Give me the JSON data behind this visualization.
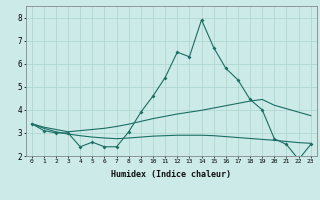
{
  "xlabel": "Humidex (Indice chaleur)",
  "x": [
    0,
    1,
    2,
    3,
    4,
    5,
    6,
    7,
    8,
    9,
    10,
    11,
    12,
    13,
    14,
    15,
    16,
    17,
    18,
    19,
    20,
    21,
    22,
    23
  ],
  "line_spiky": [
    3.4,
    3.1,
    3.0,
    3.0,
    2.4,
    2.6,
    2.4,
    2.4,
    3.05,
    3.9,
    4.6,
    5.4,
    6.5,
    6.3,
    7.9,
    6.7,
    5.8,
    5.3,
    4.45,
    4.0,
    2.75,
    2.5,
    1.85,
    2.5
  ],
  "line_upper": [
    3.4,
    3.25,
    3.15,
    3.05,
    3.1,
    3.15,
    3.2,
    3.28,
    3.38,
    3.5,
    3.62,
    3.72,
    3.82,
    3.9,
    3.98,
    4.08,
    4.18,
    4.28,
    4.38,
    4.45,
    4.2,
    4.05,
    3.9,
    3.75
  ],
  "line_lower": [
    3.4,
    3.2,
    3.05,
    2.95,
    2.88,
    2.82,
    2.78,
    2.75,
    2.78,
    2.82,
    2.86,
    2.88,
    2.9,
    2.9,
    2.9,
    2.88,
    2.84,
    2.8,
    2.76,
    2.72,
    2.68,
    2.63,
    2.58,
    2.55
  ],
  "bg_color": "#cceae7",
  "grid_color": "#aad4d0",
  "line_color": "#1a6e64",
  "ylim": [
    2.0,
    8.5
  ],
  "yticks": [
    2,
    3,
    4,
    5,
    6,
    7,
    8
  ],
  "xlim": [
    -0.5,
    23.5
  ]
}
